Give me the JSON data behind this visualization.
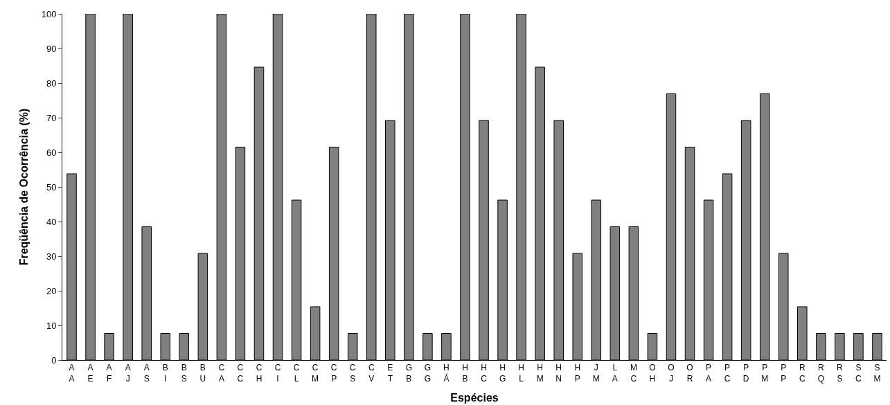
{
  "chart_data": {
    "type": "bar",
    "xlabel": "Espécies",
    "ylabel": "Freqüência de Ocorrência (%)",
    "categories": [
      "A\nA",
      "A\nE",
      "A\nF",
      "A\nJ",
      "A\nS",
      "B\nI",
      "B\nS",
      "B\nU",
      "C\nA",
      "C\nC",
      "C\nH",
      "C\nI",
      "C\nL",
      "C\nM",
      "C\nP",
      "C\nS",
      "C\nV",
      "E\nT",
      "G\nB",
      "G\nG",
      "H\nÁ",
      "H\nB",
      "H\nC",
      "H\nG",
      "H\nL",
      "H\nM",
      "H\nN",
      "H\nP",
      "J\nM",
      "L\nA",
      "M\nC",
      "O\nH",
      "O\nJ",
      "O\nR",
      "P\nA",
      "P\nC",
      "P\nD",
      "P\nM",
      "P\nP",
      "R\nC",
      "R\nQ",
      "R\nS",
      "S\nC",
      "S\nM"
    ],
    "values": [
      53.8,
      100,
      7.7,
      100,
      38.5,
      7.7,
      7.7,
      30.8,
      100,
      61.5,
      84.6,
      100,
      46.2,
      15.4,
      61.5,
      7.7,
      100,
      69.2,
      100,
      7.7,
      7.7,
      100,
      69.2,
      46.2,
      100,
      84.6,
      69.2,
      30.8,
      46.2,
      38.5,
      38.5,
      7.7,
      76.9,
      61.5,
      46.2,
      53.8,
      69.2,
      76.9,
      30.8,
      15.4,
      7.7,
      7.7,
      7.7,
      7.7
    ],
    "color": "#808080",
    "ylim": [
      0,
      100
    ],
    "yticks": [
      0,
      10,
      20,
      30,
      40,
      50,
      60,
      70,
      80,
      90,
      100
    ]
  }
}
